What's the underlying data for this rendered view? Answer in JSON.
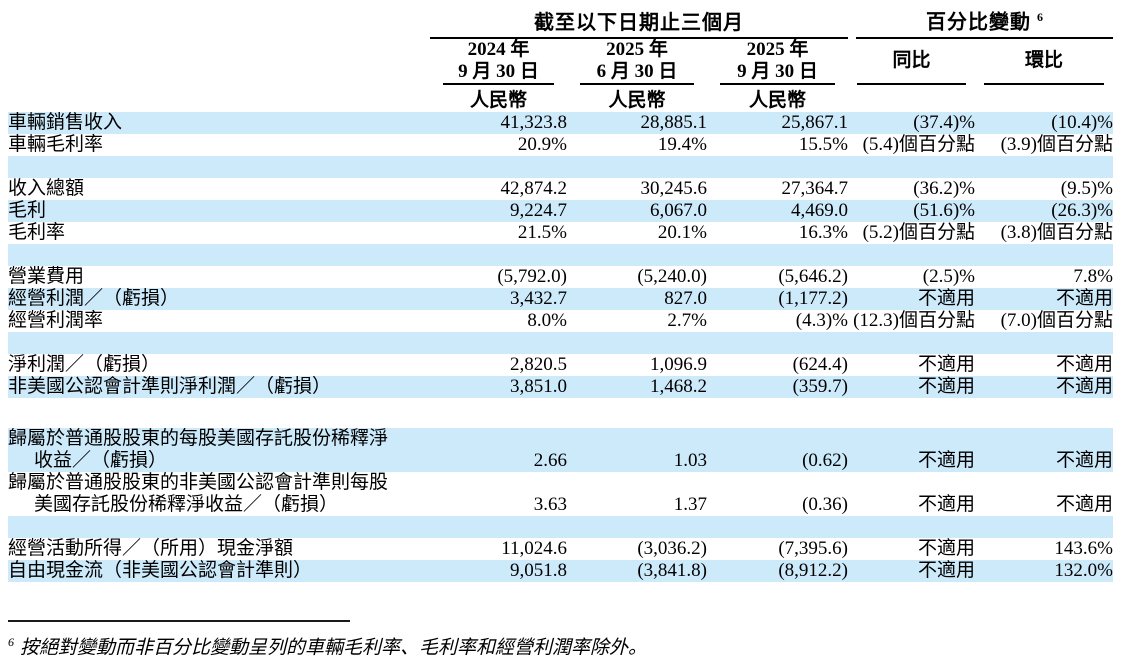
{
  "colors": {
    "row_highlight": "#cdeafb",
    "rule": "#000000"
  },
  "table": {
    "group_headers": {
      "period": "截至以下日期止三個月",
      "pct_change": "百分比變動",
      "pct_change_footnote_ref": "6"
    },
    "columns": [
      {
        "line1": "2024 年",
        "line2": "9 月 30 日",
        "unit": "人民幣"
      },
      {
        "line1": "2025 年",
        "line2": "6 月 30 日",
        "unit": "人民幣"
      },
      {
        "line1": "2025 年",
        "line2": "9 月 30 日",
        "unit": "人民幣"
      },
      {
        "label": "同比"
      },
      {
        "label": "環比"
      }
    ],
    "rows": [
      {
        "label": "車輛銷售收入",
        "values": [
          "41,323.8",
          "28,885.1",
          "25,867.1",
          "(37.4)%",
          "(10.4)%"
        ],
        "bg": "blue"
      },
      {
        "label": "車輛毛利率",
        "values": [
          "20.9%",
          "19.4%",
          "15.5%",
          "(5.4)個百分點",
          "(3.9)個百分點"
        ],
        "bg": "white"
      },
      {
        "type": "spacer",
        "bg": "blue"
      },
      {
        "label": "收入總額",
        "values": [
          "42,874.2",
          "30,245.6",
          "27,364.7",
          "(36.2)%",
          "(9.5)%"
        ],
        "bg": "white"
      },
      {
        "label": "毛利",
        "values": [
          "9,224.7",
          "6,067.0",
          "4,469.0",
          "(51.6)%",
          "(26.3)%"
        ],
        "bg": "blue"
      },
      {
        "label": "毛利率",
        "values": [
          "21.5%",
          "20.1%",
          "16.3%",
          "(5.2)個百分點",
          "(3.8)個百分點"
        ],
        "bg": "white"
      },
      {
        "type": "spacer",
        "bg": "blue"
      },
      {
        "label": "營業費用",
        "values": [
          "(5,792.0)",
          "(5,240.0)",
          "(5,646.2)",
          "(2.5)%",
          "7.8%"
        ],
        "bg": "white"
      },
      {
        "label": "經營利潤／（虧損）",
        "values": [
          "3,432.7",
          "827.0",
          "(1,177.2)",
          "不適用",
          "不適用"
        ],
        "bg": "blue"
      },
      {
        "label": "經營利潤率",
        "values": [
          "8.0%",
          "2.7%",
          "(4.3)%",
          "(12.3)個百分點",
          "(7.0)個百分點"
        ],
        "bg": "white"
      },
      {
        "type": "spacer",
        "bg": "blue"
      },
      {
        "label": "淨利潤／（虧損）",
        "values": [
          "2,820.5",
          "1,096.9",
          "(624.4)",
          "不適用",
          "不適用"
        ],
        "bg": "white"
      },
      {
        "label": "非美國公認會計準則淨利潤／（虧損）",
        "values": [
          "3,851.0",
          "1,468.2",
          "(359.7)",
          "不適用",
          "不適用"
        ],
        "bg": "blue"
      },
      {
        "type": "spacer",
        "bg": "white",
        "tall": true
      },
      {
        "label": "歸屬於普通股股東的每股美國存託股份稀釋淨",
        "label2": "收益／（虧損）",
        "values": [
          "2.66",
          "1.03",
          "(0.62)",
          "不適用",
          "不適用"
        ],
        "bg": "blue"
      },
      {
        "label": "歸屬於普通股股東的非美國公認會計準則每股",
        "label2": "美國存託股份稀釋淨收益／（虧損）",
        "values": [
          "3.63",
          "1.37",
          "(0.36)",
          "不適用",
          "不適用"
        ],
        "bg": "white"
      },
      {
        "type": "spacer",
        "bg": "blue"
      },
      {
        "label": "經營活動所得／（所用）現金淨額",
        "values": [
          "11,024.6",
          "(3,036.2)",
          "(7,395.6)",
          "不適用",
          "143.6%"
        ],
        "bg": "white"
      },
      {
        "label": "自由現金流（非美國公認會計準則）",
        "values": [
          "9,051.8",
          "(3,841.8)",
          "(8,912.2)",
          "不適用",
          "132.0%"
        ],
        "bg": "blue"
      }
    ]
  },
  "footnote": {
    "ref": "6",
    "text": "按絕對變動而非百分比變動呈列的車輛毛利率、毛利率和經營利潤率除外。"
  }
}
